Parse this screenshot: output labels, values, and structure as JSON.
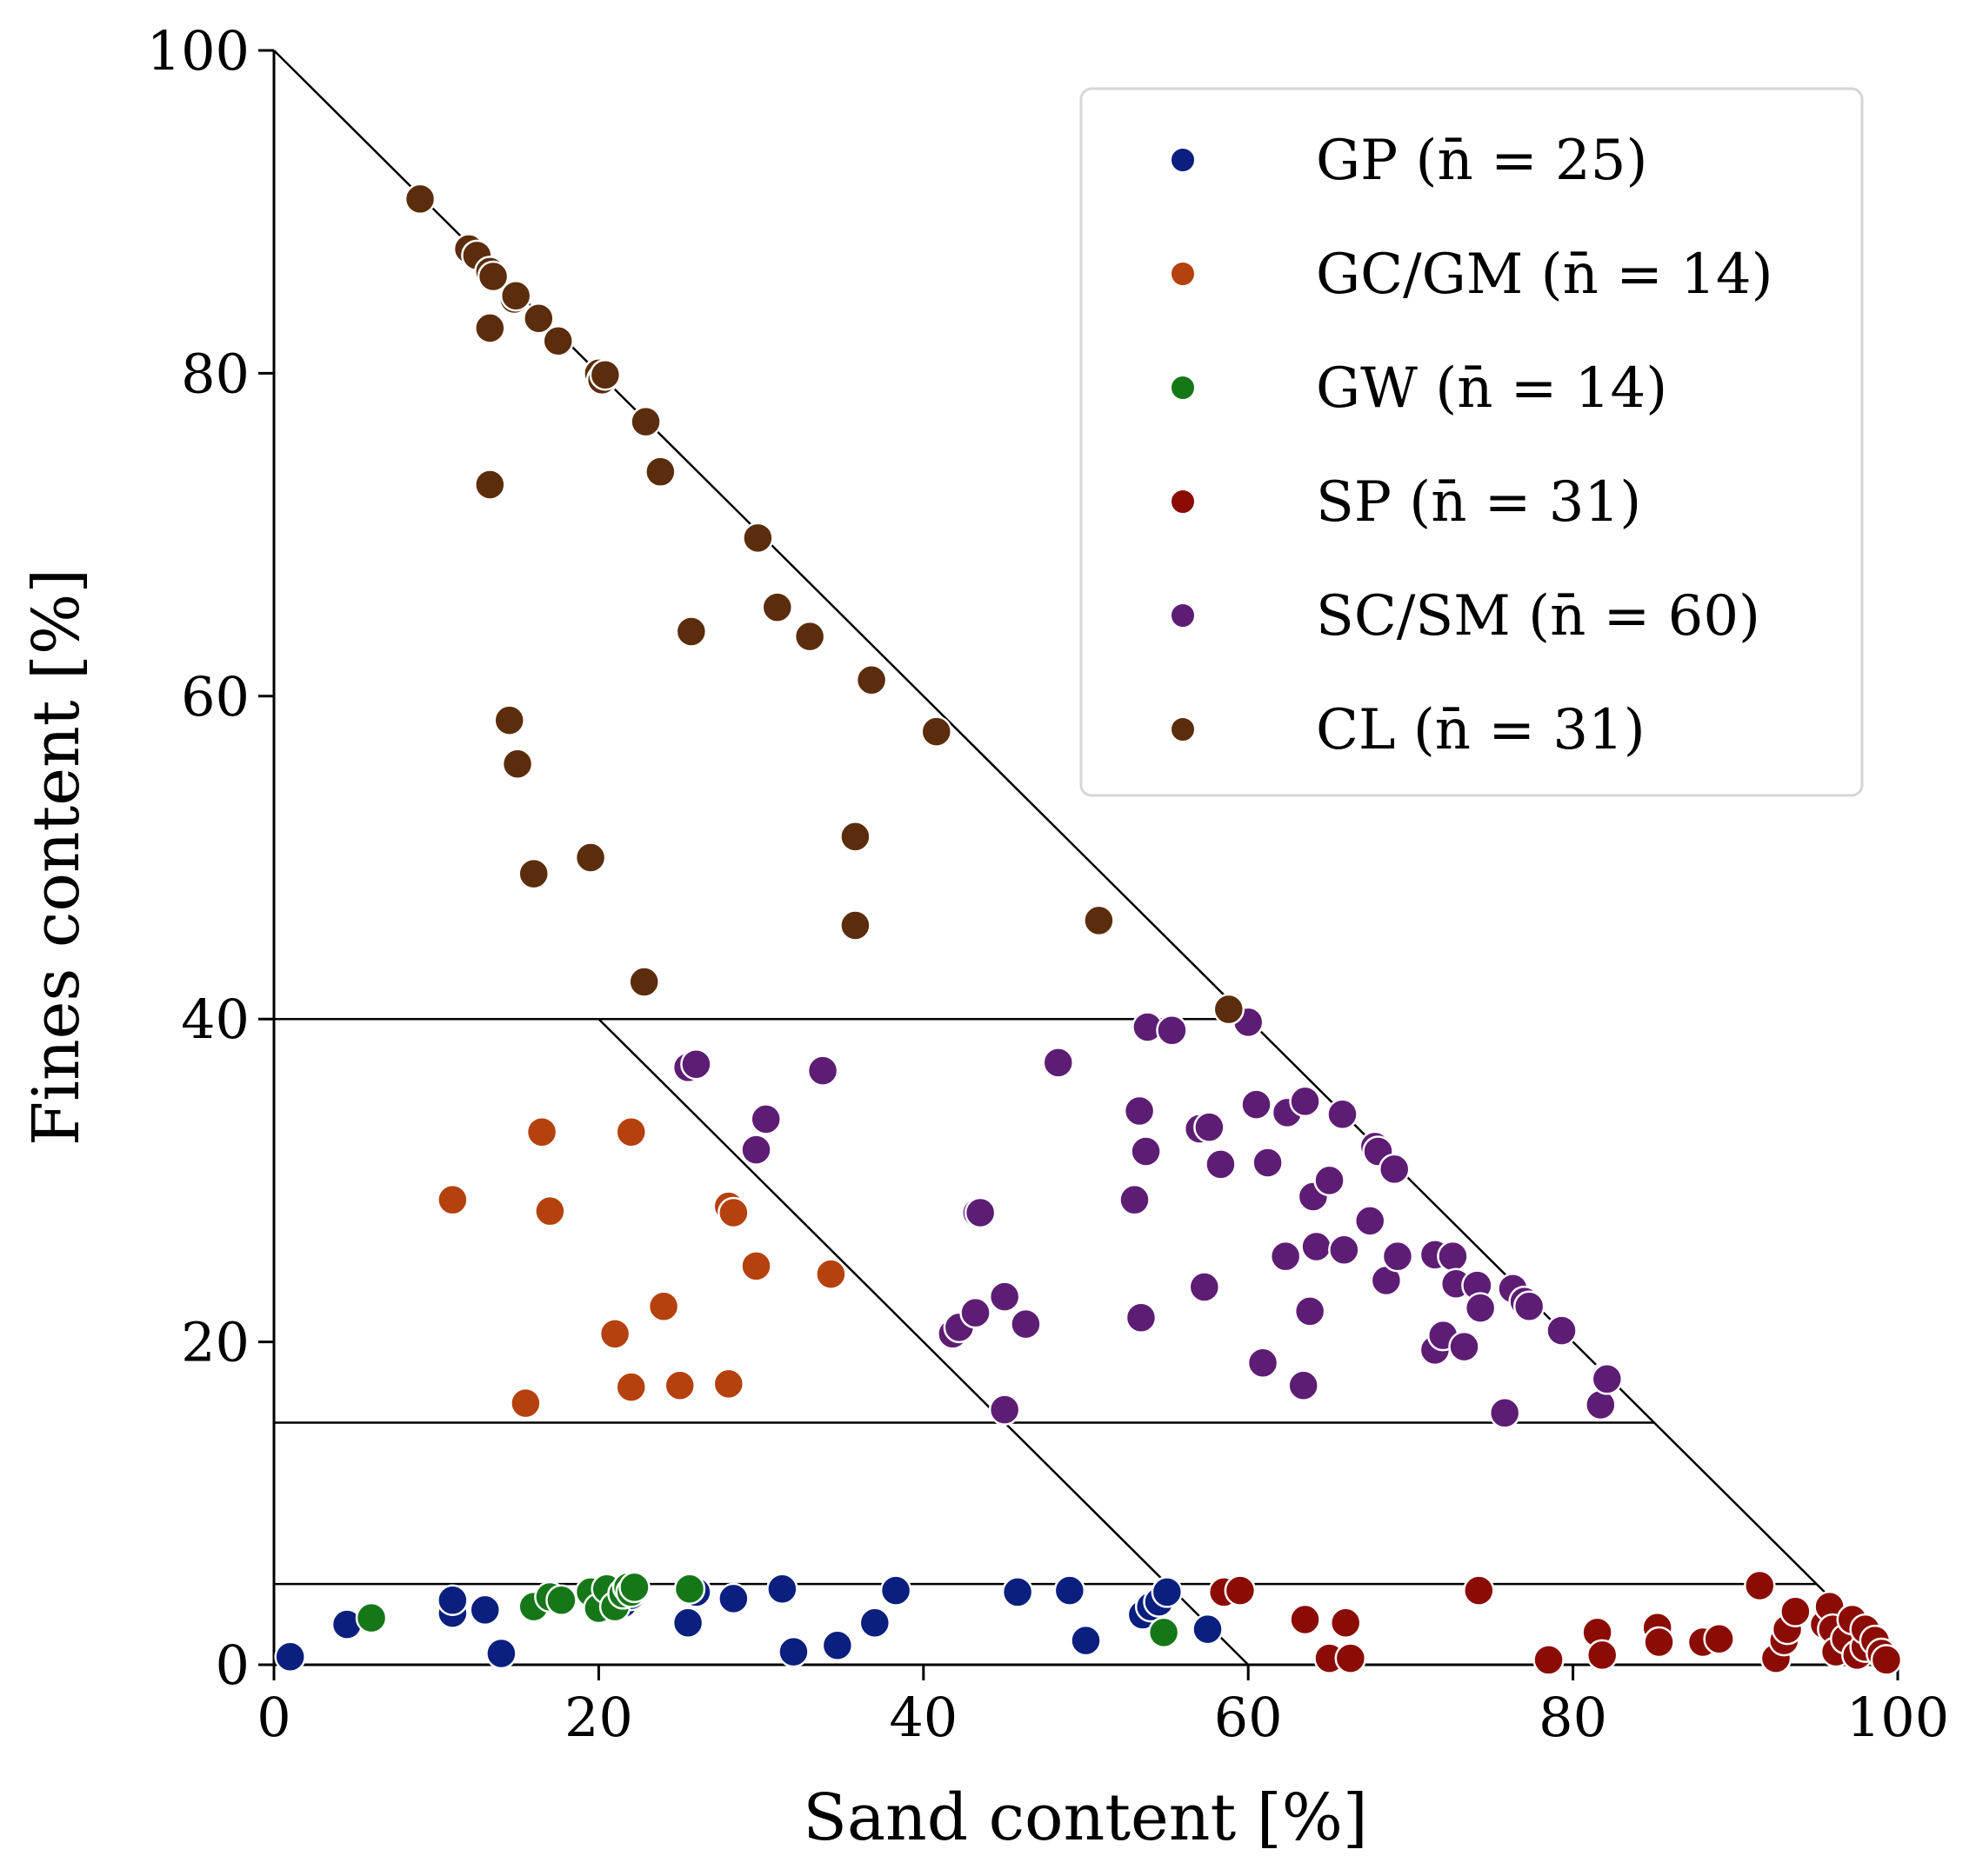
{
  "chart_data": {
    "type": "scatter",
    "xlabel": "Sand content [%]",
    "ylabel": "Fines content [%]",
    "xlim": [
      0,
      100
    ],
    "ylim": [
      0,
      100
    ],
    "xticks": [
      "0",
      "20",
      "40",
      "60",
      "80",
      "100"
    ],
    "yticks": [
      "0",
      "20",
      "40",
      "60",
      "80",
      "100"
    ],
    "grid": false,
    "legend_position": "top-right",
    "boundary_lines": [
      {
        "x": [
          0,
          100
        ],
        "y": [
          100,
          0
        ]
      },
      {
        "x": [
          0,
          60
        ],
        "y": [
          40,
          40
        ]
      },
      {
        "x": [
          20,
          60
        ],
        "y": [
          40,
          0
        ]
      },
      {
        "x": [
          0,
          85
        ],
        "y": [
          15,
          15
        ]
      },
      {
        "x": [
          0,
          95
        ],
        "y": [
          5,
          5
        ]
      }
    ],
    "series": [
      {
        "name": "GP (n̄ = 25)",
        "color": "#0b1f7e",
        "points": [
          [
            1,
            0.5
          ],
          [
            4.5,
            2.5
          ],
          [
            11,
            3.2
          ],
          [
            11,
            4
          ],
          [
            13,
            3.4
          ],
          [
            14,
            0.7
          ],
          [
            25.5,
            2.6
          ],
          [
            28.3,
            4.1
          ],
          [
            31.3,
            4.7
          ],
          [
            32,
            0.8
          ],
          [
            34.7,
            1.2
          ],
          [
            37,
            2.6
          ],
          [
            38.3,
            4.6
          ],
          [
            45.8,
            4.5
          ],
          [
            49,
            4.6
          ],
          [
            50,
            1.5
          ],
          [
            53.5,
            3.1
          ],
          [
            54,
            3.6
          ],
          [
            54.5,
            3.9
          ],
          [
            55,
            4.5
          ],
          [
            57.5,
            2.2
          ],
          [
            21,
            4
          ],
          [
            21.5,
            3.8
          ],
          [
            22,
            4.3
          ],
          [
            26,
            4.5
          ]
        ]
      },
      {
        "name": "GC/GM (n̄ = 14)",
        "color": "#b5410e",
        "points": [
          [
            11,
            28.8
          ],
          [
            16.5,
            33
          ],
          [
            17,
            28.1
          ],
          [
            15.5,
            16.2
          ],
          [
            21,
            20.5
          ],
          [
            22,
            33
          ],
          [
            22,
            17.2
          ],
          [
            24,
            22.2
          ],
          [
            25,
            17.3
          ],
          [
            28,
            28.4
          ],
          [
            28.3,
            28
          ],
          [
            28,
            17.4
          ],
          [
            29.7,
            24.7
          ],
          [
            34.3,
            24.2
          ]
        ]
      },
      {
        "name": "GW (n̄ = 14)",
        "color": "#167718",
        "points": [
          [
            6,
            2.9
          ],
          [
            16,
            3.6
          ],
          [
            17,
            4.2
          ],
          [
            17.7,
            4
          ],
          [
            19.5,
            4.5
          ],
          [
            20,
            3.5
          ],
          [
            20.5,
            4.7
          ],
          [
            21,
            3.6
          ],
          [
            21.5,
            4.4
          ],
          [
            21.8,
            4.8
          ],
          [
            22,
            4.5
          ],
          [
            22.2,
            4.8
          ],
          [
            25.6,
            4.7
          ],
          [
            54.8,
            2
          ]
        ]
      },
      {
        "name": "SP (n̄ = 31)",
        "color": "#8b0c04",
        "points": [
          [
            58.5,
            4.5
          ],
          [
            59.5,
            4.6
          ],
          [
            63.5,
            2.8
          ],
          [
            65,
            0.4
          ],
          [
            66,
            2.6
          ],
          [
            66.3,
            0.4
          ],
          [
            74.2,
            4.6
          ],
          [
            78.5,
            0.3
          ],
          [
            81.5,
            2
          ],
          [
            81.8,
            0.6
          ],
          [
            85.2,
            2.3
          ],
          [
            85.3,
            1.4
          ],
          [
            88,
            1.4
          ],
          [
            89,
            1.6
          ],
          [
            91.5,
            4.9
          ],
          [
            92.5,
            0.4
          ],
          [
            93,
            1.5
          ],
          [
            93.2,
            2.2
          ],
          [
            93.7,
            3.3
          ],
          [
            95.5,
            2.5
          ],
          [
            95.8,
            3.6
          ],
          [
            96,
            2.2
          ],
          [
            96.2,
            0.8
          ],
          [
            96.8,
            1.6
          ],
          [
            97.2,
            2.8
          ],
          [
            97.5,
            0.6
          ],
          [
            98,
            1.1
          ],
          [
            98,
            2.2
          ],
          [
            98.6,
            1.5
          ],
          [
            99,
            0.7
          ],
          [
            99.3,
            0.3
          ]
        ]
      },
      {
        "name": "SC/SM (n̄ = 60)",
        "color": "#5e1d74",
        "points": [
          [
            25.5,
            37
          ],
          [
            26,
            37.2
          ],
          [
            29.7,
            31.9
          ],
          [
            30.3,
            33.8
          ],
          [
            33.8,
            36.8
          ],
          [
            41.8,
            20.5
          ],
          [
            42.2,
            20.9
          ],
          [
            43.2,
            21.8
          ],
          [
            43.3,
            28
          ],
          [
            43.5,
            28
          ],
          [
            45,
            22.8
          ],
          [
            45,
            15.8
          ],
          [
            46.3,
            21.1
          ],
          [
            48.3,
            37.3
          ],
          [
            53,
            28.8
          ],
          [
            53.3,
            34.3
          ],
          [
            53.4,
            21.5
          ],
          [
            53.7,
            31.8
          ],
          [
            53.8,
            39.5
          ],
          [
            55.3,
            39.3
          ],
          [
            57,
            33.2
          ],
          [
            57.3,
            23.4
          ],
          [
            57.6,
            33.3
          ],
          [
            58.3,
            31
          ],
          [
            60,
            39.8
          ],
          [
            60.5,
            34.7
          ],
          [
            60.9,
            18.7
          ],
          [
            61.2,
            31.1
          ],
          [
            62.3,
            25.3
          ],
          [
            62.4,
            34.2
          ],
          [
            63.4,
            17.3
          ],
          [
            63.5,
            34.9
          ],
          [
            63.8,
            21.9
          ],
          [
            64,
            29
          ],
          [
            64.2,
            25.9
          ],
          [
            65,
            30
          ],
          [
            65.8,
            34.1
          ],
          [
            65.9,
            25.7
          ],
          [
            67.5,
            27.5
          ],
          [
            67.8,
            32.1
          ],
          [
            68,
            31.8
          ],
          [
            68.5,
            23.8
          ],
          [
            69,
            30.7
          ],
          [
            69.2,
            25.3
          ],
          [
            71.5,
            19.5
          ],
          [
            71.5,
            25.4
          ],
          [
            72,
            20.4
          ],
          [
            72.6,
            25.3
          ],
          [
            72.8,
            23.6
          ],
          [
            73.3,
            19.7
          ],
          [
            74.1,
            23.5
          ],
          [
            74.3,
            22.1
          ],
          [
            75.8,
            15.6
          ],
          [
            76.3,
            23.3
          ],
          [
            77,
            22.5
          ],
          [
            77.3,
            22.2
          ],
          [
            79.3,
            20.7
          ],
          [
            81.7,
            16.1
          ],
          [
            82,
            17.8
          ],
          [
            82.1,
            17.7
          ]
        ]
      },
      {
        "name": "CL (n̄ = 31)",
        "color": "#5b2d0c",
        "points": [
          [
            9,
            90.8
          ],
          [
            12,
            87.7
          ],
          [
            12.5,
            87.3
          ],
          [
            13.3,
            86.3
          ],
          [
            13.3,
            82.8
          ],
          [
            13.3,
            73.1
          ],
          [
            14.5,
            58.5
          ],
          [
            14.8,
            84.6
          ],
          [
            15,
            55.8
          ],
          [
            16,
            49
          ],
          [
            16.3,
            83.4
          ],
          [
            17.5,
            82
          ],
          [
            19.5,
            50
          ],
          [
            20,
            80
          ],
          [
            20.2,
            79.6
          ],
          [
            22.8,
            42.3
          ],
          [
            22.9,
            77
          ],
          [
            23.8,
            73.9
          ],
          [
            25.7,
            64
          ],
          [
            29.8,
            69.8
          ],
          [
            31,
            65.5
          ],
          [
            33,
            63.7
          ],
          [
            35.8,
            51.3
          ],
          [
            35.8,
            45.8
          ],
          [
            36.8,
            61
          ],
          [
            40.8,
            57.8
          ],
          [
            50.8,
            46.1
          ],
          [
            58.8,
            40.6
          ],
          [
            13.5,
            86
          ],
          [
            14.9,
            84.8
          ],
          [
            20.4,
            79.9
          ]
        ]
      }
    ]
  }
}
